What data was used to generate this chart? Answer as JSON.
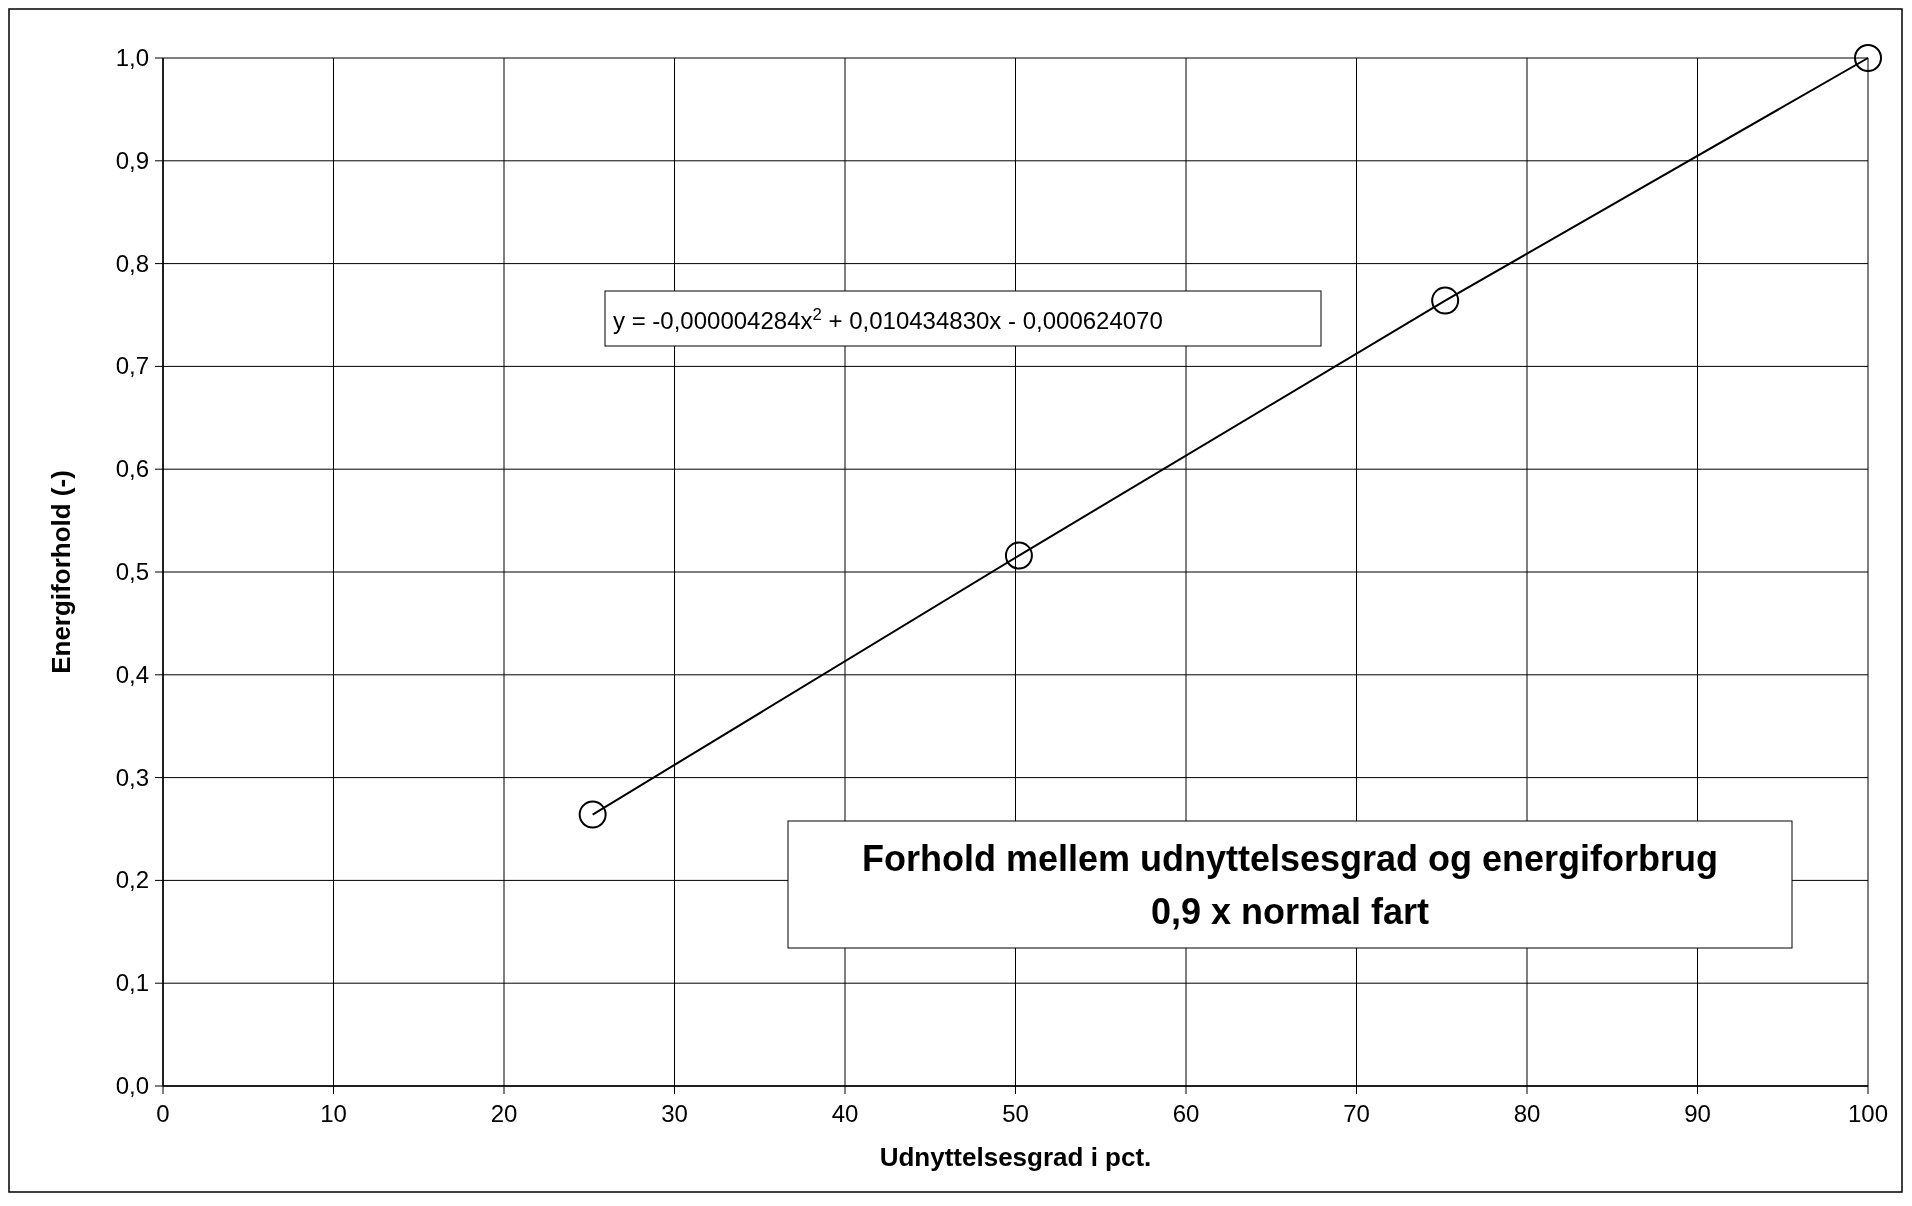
{
  "chart_data": {
    "type": "line",
    "title": "Forhold mellem udnyttelsesgrad og energiforbrug",
    "subtitle": "0,9 x normal fart",
    "xlabel": "Udnyttelsesgrad i pct.",
    "ylabel": "Energiforhold (-)",
    "annotations": [
      "y = -0,000004284x$^{2}$ + 0,010434830x - 0,000624070"
    ],
    "x": [
      25.2,
      50.2,
      75.2,
      100
    ],
    "series": [
      {
        "color": "#000000",
        "values": [
          0.264,
          0.516,
          0.764,
          1
        ]
      }
    ],
    "xlim": [
      0,
      100
    ],
    "xticks": [
      0,
      10,
      20,
      30,
      40,
      50,
      60,
      70,
      80,
      90,
      100
    ],
    "ylim": [
      0,
      1
    ],
    "yticks": [
      {
        "value": 0,
        "label": "0,0"
      },
      {
        "value": 0.1,
        "label": "0,1"
      },
      {
        "value": 0.2,
        "label": "0,2"
      },
      {
        "value": 0.3,
        "label": "0,3"
      },
      {
        "value": 0.4,
        "label": "0,4"
      },
      {
        "value": 0.5,
        "label": "0,5"
      },
      {
        "value": 0.6,
        "label": "0,6"
      },
      {
        "value": 0.7,
        "label": "0,7"
      },
      {
        "value": 0.8,
        "label": "0,8"
      },
      {
        "value": 0.9,
        "label": "0,9"
      },
      {
        "value": 1,
        "label": "1,0"
      }
    ],
    "grid": true,
    "marker": "circle",
    "line_style": "solid"
  }
}
